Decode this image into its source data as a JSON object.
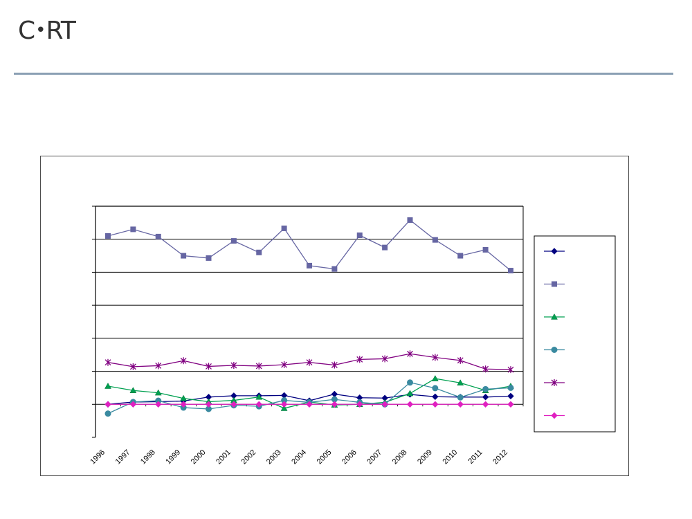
{
  "header": {
    "logo_text": "CRT",
    "rule_color": "#8a9fb3"
  },
  "chart_data": {
    "type": "line",
    "title": "",
    "xlabel": "",
    "ylabel": "",
    "x": [
      "1996",
      "1997",
      "1998",
      "1999",
      "2000",
      "2001",
      "2002",
      "2003",
      "2004",
      "2005",
      "2006",
      "2007",
      "2008",
      "2009",
      "2010",
      "2011",
      "2012"
    ],
    "ylim": [
      -1,
      6
    ],
    "y_gridlines": [
      0,
      1,
      2,
      3,
      4,
      5,
      6
    ],
    "grid": true,
    "legend_position": "right",
    "series": [
      {
        "color": "#000080",
        "marker": "diamond",
        "values": [
          0.0,
          0.07,
          0.08,
          0.1,
          0.22,
          0.26,
          0.26,
          0.27,
          0.11,
          0.31,
          0.2,
          0.19,
          0.3,
          0.23,
          0.22,
          0.22,
          0.25
        ]
      },
      {
        "color": "#6666a3",
        "marker": "square",
        "values": [
          5.1,
          5.3,
          5.08,
          4.5,
          4.43,
          4.95,
          4.6,
          5.33,
          4.2,
          4.1,
          5.12,
          4.75,
          5.58,
          4.98,
          4.5,
          4.68,
          4.05
        ]
      },
      {
        "color": "#00a050",
        "marker": "triangle",
        "values": [
          0.55,
          0.42,
          0.35,
          0.18,
          0.08,
          0.12,
          0.22,
          -0.12,
          0.07,
          -0.02,
          0.0,
          0.06,
          0.33,
          0.78,
          0.65,
          0.42,
          0.55
        ]
      },
      {
        "color": "#3a8aa0",
        "marker": "circle",
        "values": [
          -0.28,
          0.07,
          0.11,
          -0.1,
          -0.14,
          -0.03,
          -0.06,
          0.12,
          0.06,
          0.15,
          0.06,
          0.0,
          0.66,
          0.49,
          0.21,
          0.46,
          0.5
        ]
      },
      {
        "color": "#800080",
        "marker": "star",
        "values": [
          1.27,
          1.14,
          1.17,
          1.32,
          1.15,
          1.18,
          1.16,
          1.2,
          1.27,
          1.19,
          1.36,
          1.38,
          1.53,
          1.42,
          1.33,
          1.07,
          1.05
        ]
      },
      {
        "color": "#e020c0",
        "marker": "diamond",
        "values": [
          0.0,
          0.0,
          0.0,
          0.0,
          0.0,
          0.0,
          0.0,
          0.0,
          0.0,
          0.0,
          0.0,
          0.0,
          0.0,
          0.0,
          0.0,
          0.0,
          0.0
        ]
      }
    ]
  }
}
